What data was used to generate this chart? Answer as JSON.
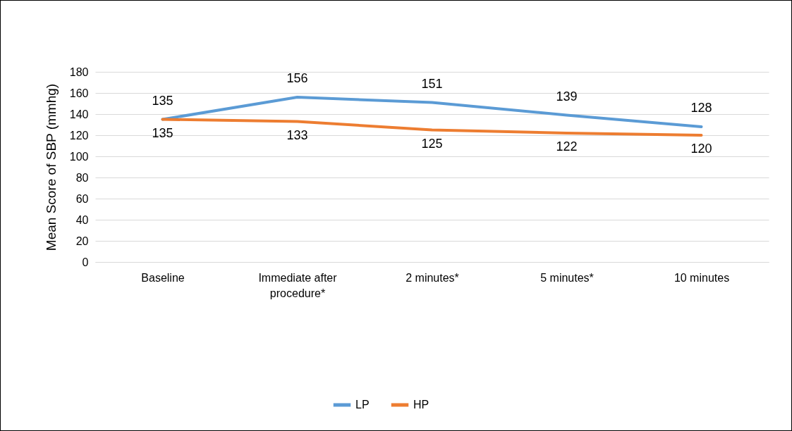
{
  "chart_data": {
    "type": "line",
    "ylabel": "Mean Score of SBP (mmhg)",
    "categories": [
      "Baseline",
      "Immediate after procedure*",
      "2 minutes*",
      "5 minutes*",
      "10 minutes"
    ],
    "series": [
      {
        "name": "LP",
        "color": "#5b9bd5",
        "values": [
          135,
          156,
          151,
          139,
          128
        ]
      },
      {
        "name": "HP",
        "color": "#ed7d31",
        "values": [
          135,
          133,
          125,
          122,
          120
        ]
      }
    ],
    "ylim": [
      0,
      180
    ],
    "yticks": [
      0,
      20,
      40,
      60,
      80,
      100,
      120,
      140,
      160,
      180
    ],
    "grid": "y",
    "legend": "bottom",
    "data_labels": true,
    "marker": "none",
    "line_style": "solid"
  }
}
